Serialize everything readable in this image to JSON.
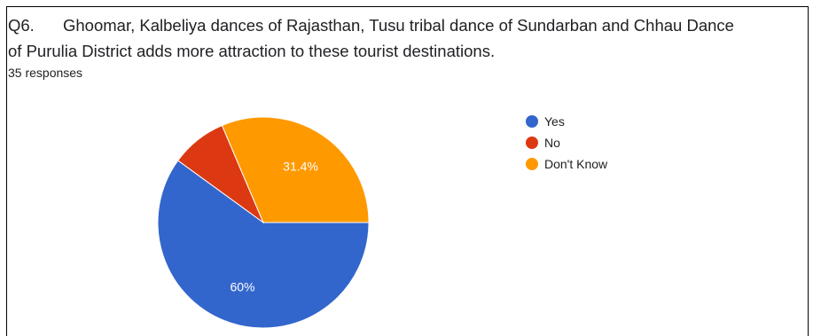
{
  "question": {
    "number": "Q6.",
    "line1": "Ghoomar, Kalbeliya dances of Rajasthan, Tusu tribal dance of Sundarban and Chhau Dance",
    "line2": "of Purulia District adds more attraction to these tourist destinations."
  },
  "responses": "35 responses",
  "chart_data": {
    "type": "pie",
    "categories": [
      "Yes",
      "No",
      "Don't Know"
    ],
    "values": [
      60,
      8.6,
      31.4
    ],
    "data_labels": [
      "60%",
      "",
      "31.4%"
    ],
    "colors": [
      "#3366cc",
      "#dc3912",
      "#ff9900"
    ],
    "legend": [
      "Yes",
      "No",
      "Don't Know"
    ],
    "legend_position": "right"
  }
}
